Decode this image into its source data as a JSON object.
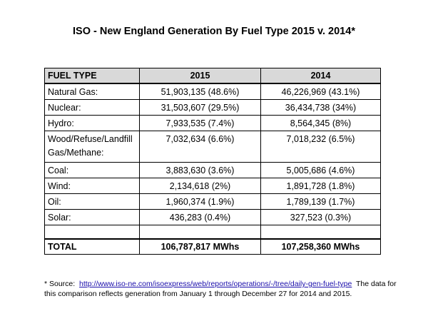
{
  "title": "ISO - New England Generation By Fuel Type 2015 v. 2014*",
  "table": {
    "headers": [
      "FUEL TYPE",
      "2015",
      "2014"
    ],
    "rows": [
      {
        "fuel": "Natural Gas:",
        "y2015": "51,903,135 (48.6%)",
        "y2014": "46,226,969 (43.1%)"
      },
      {
        "fuel": "Nuclear:",
        "y2015": "31,503,607 (29.5%)",
        "y2014": "36,434,738 (34%)"
      },
      {
        "fuel": "Hydro:",
        "y2015": "7,933,535 (7.4%)",
        "y2014": "8,564,345 (8%)"
      },
      {
        "fuel": "Wood/Refuse/Landfill Gas/Methane:",
        "y2015": "7,032,634 (6.6%)",
        "y2014": "7,018,232 (6.5%)"
      },
      {
        "fuel": "Coal:",
        "y2015": "3,883,630 (3.6%)",
        "y2014": "5,005,686 (4.6%)"
      },
      {
        "fuel": "Wind:",
        "y2015": "2,134,618 (2%)",
        "y2014": "1,891,728 (1.8%)"
      },
      {
        "fuel": "Oil:",
        "y2015": "1,960,374 (1.9%)",
        "y2014": "1,789,139 (1.7%)"
      },
      {
        "fuel": "Solar:",
        "y2015": "436,283 (0.4%)",
        "y2014": "327,523 (0.3%)"
      }
    ],
    "total": {
      "label": "TOTAL",
      "y2015": "106,787,817 MWhs",
      "y2014": "107,258,360 MWhs"
    }
  },
  "footnote": {
    "prefix": "* Source:",
    "link_text": "http://www.iso-ne.com/isoexpress/web/reports/operations/-/tree/daily-gen-fuel-type",
    "suffix": "The data for this comparison reflects generation from January 1 through December 27 for 2014 and 2015."
  }
}
